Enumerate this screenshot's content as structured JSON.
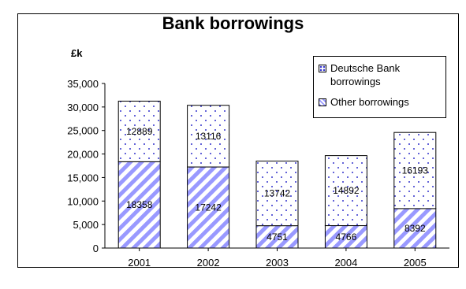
{
  "chart_data": {
    "type": "bar",
    "stacked": true,
    "title": "Bank borrowings",
    "ylabel": "£k",
    "xlabel": "",
    "categories": [
      "2001",
      "2002",
      "2003",
      "2004",
      "2005"
    ],
    "series": [
      {
        "name": "Other borrowings",
        "values": [
          18358,
          17242,
          4751,
          4766,
          8392
        ],
        "color": "#9999ff",
        "pattern": "diagonal-stripes"
      },
      {
        "name": "Deutsche Bank borrowings",
        "values": [
          12889,
          13116,
          13742,
          14892,
          16193
        ],
        "color": "#3333cc",
        "pattern": "dots"
      }
    ],
    "ylim": [
      0,
      35000
    ],
    "yticks": [
      "0",
      "5,000",
      "10,000",
      "15,000",
      "20,000",
      "25,000",
      "30,000",
      "35,000"
    ],
    "grid": false,
    "legend_position": "top-right"
  }
}
